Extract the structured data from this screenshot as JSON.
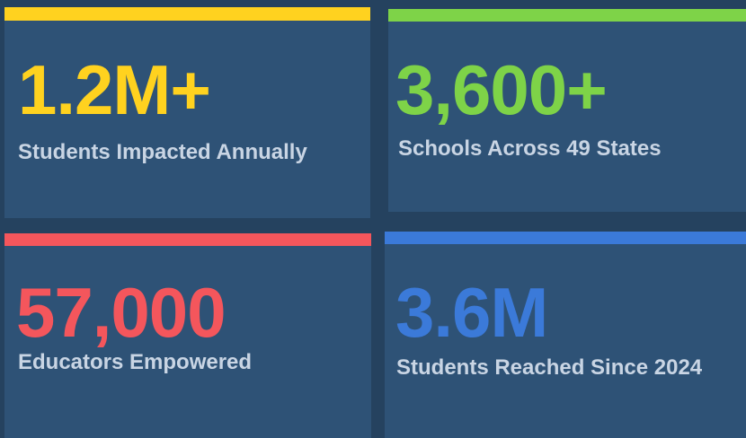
{
  "cards": [
    {
      "value": "1.2M+",
      "label": "Students Impacted Annually",
      "color": "#ffd21f"
    },
    {
      "value": "3,600+",
      "label": "Schools Across 49 States",
      "color": "#7ed348"
    },
    {
      "value": "57,000",
      "label": "Educators Empowered",
      "color": "#f4565c"
    },
    {
      "value": "3.6M",
      "label": "Students Reached Since 2024",
      "color": "#3b7ad9"
    }
  ]
}
